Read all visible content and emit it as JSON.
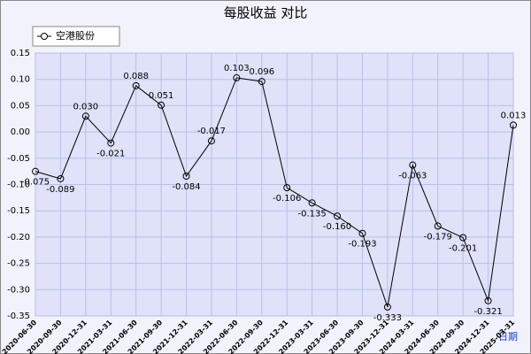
{
  "chart_data": {
    "type": "line",
    "title": "每股收益  对比",
    "x_label": "日期",
    "categories": [
      "2020-06-30",
      "2020-09-30",
      "2020-12-31",
      "2021-03-31",
      "2021-06-30",
      "2021-09-30",
      "2021-12-31",
      "2022-03-31",
      "2022-06-30",
      "2022-09-30",
      "2022-12-31",
      "2023-03-31",
      "2023-06-30",
      "2023-09-30",
      "2023-12-31",
      "2024-03-31",
      "2024-06-30",
      "2024-09-30",
      "2024-12-31",
      "2025-03-31"
    ],
    "series": [
      {
        "name": "空港股份",
        "color": "#000000",
        "values": [
          -0.075,
          -0.089,
          0.03,
          -0.021,
          0.088,
          0.051,
          -0.084,
          -0.017,
          0.103,
          0.096,
          -0.106,
          -0.135,
          -0.16,
          -0.193,
          -0.333,
          -0.063,
          -0.179,
          -0.201,
          -0.321,
          0.013
        ],
        "value_labels": [
          "-0.075",
          "-0.089",
          "0.030",
          "-0.021",
          "0.088",
          "0.051",
          "-0.084",
          "-0.017",
          "0.103",
          "0.096",
          "-0.106",
          "-0.135",
          "-0.160",
          "-0.193",
          "-0.333",
          "-0.063",
          "-0.179",
          "-0.201",
          "-0.321",
          "0.013"
        ]
      }
    ],
    "ylim": [
      -0.35,
      0.15
    ],
    "yticks": [
      0.15,
      {
        "value": 0.1,
        "label": "0.10"
      },
      0.05,
      {
        "value": 0,
        "label": "0.00"
      },
      -0.05,
      {
        "value": -0.1,
        "label": "-0.10"
      },
      -0.15,
      {
        "value": -0.2,
        "label": "-0.20"
      },
      -0.25,
      {
        "value": -0.3,
        "label": "-0.30"
      },
      -0.35
    ],
    "grid": true
  }
}
